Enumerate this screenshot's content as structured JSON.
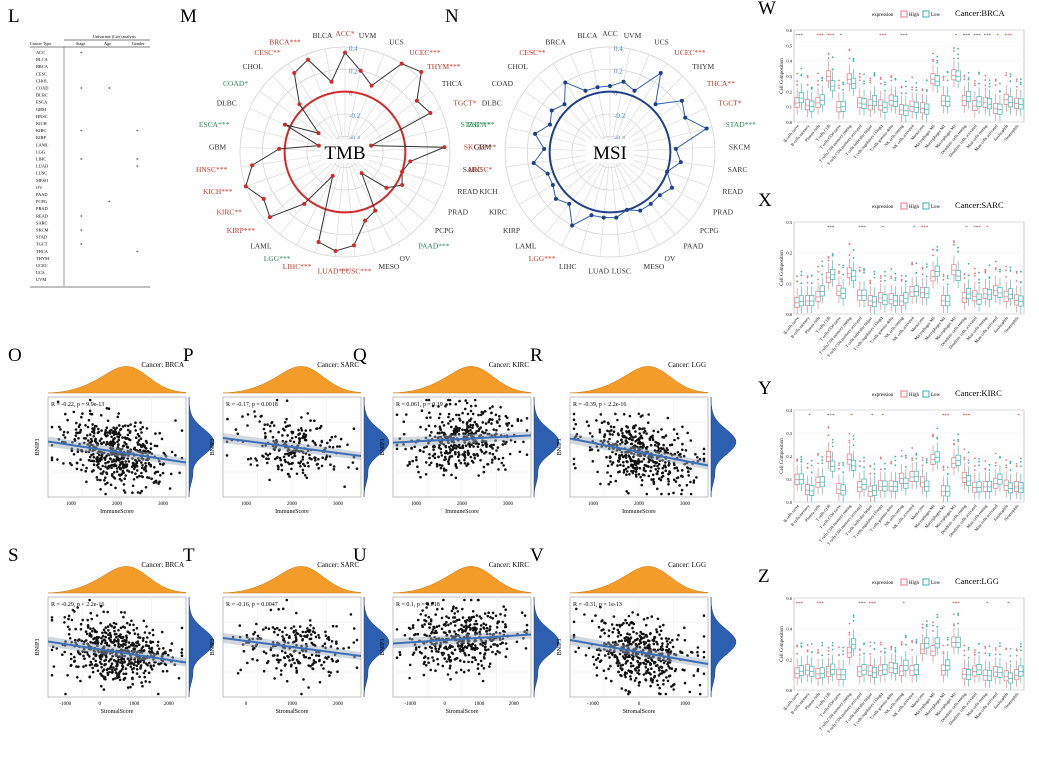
{
  "panel_letters": [
    "L",
    "M",
    "N",
    "O",
    "P",
    "Q",
    "R",
    "S",
    "T",
    "U",
    "V",
    "W",
    "X",
    "Y",
    "Z"
  ],
  "table_L": {
    "header_group": "Univariate (Cox) analysis",
    "col_headers": [
      "Cancer Type",
      "Stage",
      "Age",
      "Gender"
    ],
    "rows": [
      "ACC",
      "BLCA",
      "BRCA",
      "CESC",
      "CHOL",
      "COAD",
      "DLBC",
      "ESCA",
      "GBM",
      "HNSC",
      "KICH",
      "KIRC",
      "KIRP",
      "LAML",
      "LGG",
      "LIHC",
      "LUAD",
      "LUSC",
      "MESO",
      "OV",
      "PAAD",
      "PCPG",
      "PRAD",
      "READ",
      "SARC",
      "SKCM",
      "STAD",
      "TGCT",
      "THCA",
      "THYM",
      "UCEC",
      "UCS",
      "UVM"
    ],
    "marks": [
      [
        0,
        1
      ],
      [
        5,
        1
      ],
      [
        5,
        2
      ],
      [
        11,
        1
      ],
      [
        11,
        3
      ],
      [
        15,
        1
      ],
      [
        15,
        3
      ],
      [
        16,
        3
      ],
      [
        21,
        2
      ],
      [
        23,
        1
      ],
      [
        25,
        1
      ],
      [
        27,
        1
      ],
      [
        28,
        3
      ]
    ],
    "mark_symbol": "*"
  },
  "radar_M": {
    "center_label": "TMB",
    "ring_labels": [
      "0.4",
      "0.2",
      "0",
      "-0.2",
      "-0.4"
    ],
    "color_line": "#333333",
    "color_ring": "#d62728",
    "labels": [
      {
        "text": "ACC*",
        "color": "#c0392b"
      },
      {
        "text": "UVM",
        "color": "#333"
      },
      {
        "text": "UCS",
        "color": "#333"
      },
      {
        "text": "UCEC***",
        "color": "#c0392b"
      },
      {
        "text": "THYM***",
        "color": "#c0392b"
      },
      {
        "text": "THCA",
        "color": "#333"
      },
      {
        "text": "TGCT*",
        "color": "#c0392b"
      },
      {
        "text": "STAD***",
        "color": "#2e8b57"
      },
      {
        "text": "SKCM***",
        "color": "#c0392b"
      },
      {
        "text": "SARC",
        "color": "#333"
      },
      {
        "text": "READ",
        "color": "#333"
      },
      {
        "text": "PRAD",
        "color": "#333"
      },
      {
        "text": "PCPG",
        "color": "#333"
      },
      {
        "text": "PAAD***",
        "color": "#2e8b57"
      },
      {
        "text": "OV",
        "color": "#333"
      },
      {
        "text": "MESO",
        "color": "#333"
      },
      {
        "text": "LUSC***",
        "color": "#c0392b"
      },
      {
        "text": "LUAD***",
        "color": "#c0392b"
      },
      {
        "text": "LIHC***",
        "color": "#c0392b"
      },
      {
        "text": "LGG***",
        "color": "#2e8b57"
      },
      {
        "text": "LAML",
        "color": "#333"
      },
      {
        "text": "KIRP***",
        "color": "#c0392b"
      },
      {
        "text": "KIRC**",
        "color": "#c0392b"
      },
      {
        "text": "KICH***",
        "color": "#c0392b"
      },
      {
        "text": "HNSC***",
        "color": "#c0392b"
      },
      {
        "text": "GBM",
        "color": "#333"
      },
      {
        "text": "ESCA***",
        "color": "#2e8b57"
      },
      {
        "text": "DLBC",
        "color": "#333"
      },
      {
        "text": "COAD*",
        "color": "#2e8b57"
      },
      {
        "text": "CHOL",
        "color": "#333"
      },
      {
        "text": "CESC**",
        "color": "#c0392b"
      },
      {
        "text": "BRCA***",
        "color": "#c0392b"
      },
      {
        "text": "BLCA",
        "color": "#333"
      }
    ],
    "values": [
      0.35,
      0.2,
      0.1,
      0.4,
      0.45,
      0.25,
      0.3,
      -0.3,
      0.35,
      0.05,
      0.0,
      0.05,
      -0.05,
      -0.3,
      0.05,
      0.1,
      0.3,
      0.35,
      0.3,
      -0.3,
      0.05,
      0.35,
      0.3,
      0.4,
      0.3,
      0.05,
      -0.3,
      0.05,
      -0.25,
      0.05,
      0.3,
      0.35,
      0.1
    ]
  },
  "radar_N": {
    "center_label": "MSI",
    "ring_labels": [
      "0.4",
      "0.2",
      "0",
      "-0.2",
      "-0.4"
    ],
    "color_line": "#2c5fa8",
    "color_ring": "#1f3f8a",
    "labels": [
      {
        "text": "ACC",
        "color": "#333"
      },
      {
        "text": "UVM",
        "color": "#333"
      },
      {
        "text": "UCS",
        "color": "#333"
      },
      {
        "text": "UCEC***",
        "color": "#c0392b"
      },
      {
        "text": "THYM",
        "color": "#333"
      },
      {
        "text": "THCA**",
        "color": "#c0392b"
      },
      {
        "text": "TGCT*",
        "color": "#c0392b"
      },
      {
        "text": "STAD***",
        "color": "#2e8b57"
      },
      {
        "text": "SKCM",
        "color": "#333"
      },
      {
        "text": "SARC",
        "color": "#333"
      },
      {
        "text": "READ",
        "color": "#333"
      },
      {
        "text": "PRAD",
        "color": "#333"
      },
      {
        "text": "PCPG",
        "color": "#333"
      },
      {
        "text": "PAAD",
        "color": "#333"
      },
      {
        "text": "OV",
        "color": "#333"
      },
      {
        "text": "MESO",
        "color": "#333"
      },
      {
        "text": "LUSC",
        "color": "#333"
      },
      {
        "text": "LUAD",
        "color": "#333"
      },
      {
        "text": "LIHC",
        "color": "#333"
      },
      {
        "text": "LGG***",
        "color": "#c0392b"
      },
      {
        "text": "LAML",
        "color": "#333"
      },
      {
        "text": "KIRP",
        "color": "#333"
      },
      {
        "text": "KIRC",
        "color": "#333"
      },
      {
        "text": "KICH",
        "color": "#333"
      },
      {
        "text": "HNSC*",
        "color": "#c0392b"
      },
      {
        "text": "GBM",
        "color": "#333"
      },
      {
        "text": "ESCA**",
        "color": "#2e8b57"
      },
      {
        "text": "DLBC",
        "color": "#333"
      },
      {
        "text": "COAD",
        "color": "#333"
      },
      {
        "text": "CHOL",
        "color": "#333"
      },
      {
        "text": "CESC**",
        "color": "#c0392b"
      },
      {
        "text": "BRCA",
        "color": "#333"
      },
      {
        "text": "BLCA",
        "color": "#333"
      }
    ],
    "values": [
      0.05,
      0.1,
      0.05,
      0.3,
      0.05,
      0.25,
      0.2,
      0.35,
      0.05,
      0.1,
      0.0,
      0.1,
      0.05,
      0.05,
      0.05,
      0.0,
      0.05,
      0.05,
      0.05,
      0.2,
      0.05,
      0.1,
      0.05,
      0.05,
      0.15,
      0.05,
      0.15,
      0.05,
      0.1,
      0.05,
      0.2,
      0.05,
      0.05
    ]
  },
  "scatter_panels": [
    {
      "letter": "O",
      "title": "Cancer: BRCA",
      "stat": "R = -0.22, p = 9.9e-13",
      "xlabel": "ImmuneScore",
      "ylabel": "BNIP3",
      "xticks": [
        "1000",
        "2000",
        "3000"
      ],
      "n": 520,
      "slope": -0.35,
      "density": "mid"
    },
    {
      "letter": "P",
      "title": "Cancer: SARC",
      "stat": "R = -0.17, p = 0.0018",
      "xlabel": "ImmuneScore",
      "ylabel": "BNIP3",
      "xticks": [
        "1000",
        "2000",
        "3000"
      ],
      "n": 230,
      "slope": -0.3,
      "density": "low"
    },
    {
      "letter": "Q",
      "title": "Cancer: KIRC",
      "stat": "R = 0.061, p = 0.19",
      "xlabel": "ImmuneScore",
      "ylabel": "BNIP3",
      "xticks": [
        "1000",
        "2000",
        "3000"
      ],
      "n": 420,
      "slope": 0.12,
      "density": "hi"
    },
    {
      "letter": "R",
      "title": "Cancer: LGG",
      "stat": "R = -0.39, p < 2.2e-16",
      "xlabel": "ImmuneScore",
      "ylabel": "BNIP3",
      "xticks": [
        "1000",
        "2000",
        "3000"
      ],
      "n": 460,
      "slope": -0.45,
      "density": "mid"
    },
    {
      "letter": "S",
      "title": "Cancer: BRCA",
      "stat": "R = -0.29, p < 2.2e-16",
      "xlabel": "StromalScore",
      "ylabel": "BNIP3",
      "xticks": [
        "-1000",
        "0",
        "1000",
        "2000"
      ],
      "n": 540,
      "slope": -0.35,
      "density": "mid"
    },
    {
      "letter": "T",
      "title": "Cancer: SARC",
      "stat": "R = -0.16, p = 0.0047",
      "xlabel": "StromalScore",
      "ylabel": "BNIP3",
      "xticks": [
        "0",
        "1000",
        "2000"
      ],
      "n": 230,
      "slope": -0.3,
      "density": "low"
    },
    {
      "letter": "U",
      "title": "Cancer: KIRC",
      "stat": "R = 0.1, p = 0.018",
      "xlabel": "StromalScore",
      "ylabel": "BNIP3",
      "xticks": [
        "-1000",
        "0",
        "1000",
        "2000"
      ],
      "n": 420,
      "slope": 0.15,
      "density": "hi"
    },
    {
      "letter": "V",
      "title": "Cancer: LGG",
      "stat": "R = -0.31, p = 1e-13",
      "xlabel": "StromalScore",
      "ylabel": "BNIP3",
      "xticks": [
        "-1000",
        "0",
        "1000"
      ],
      "n": 460,
      "slope": -0.4,
      "density": "mid"
    }
  ],
  "box_panels": [
    {
      "letter": "W",
      "title": "Cancer:BRCA",
      "legend_title": "expression",
      "legend_items": [
        "High",
        "Low"
      ],
      "ylabel": "Cell Composition",
      "yticks": [
        "0.0",
        "0.1",
        "0.2",
        "0.3",
        "0.4",
        "0.5",
        "0.6"
      ],
      "ymax": 0.6
    },
    {
      "letter": "X",
      "title": "Cancer:SARC",
      "legend_title": "expression",
      "legend_items": [
        "High",
        "Low"
      ],
      "ylabel": "Cell Composition",
      "yticks": [
        "0.0",
        "0.1",
        "0.2",
        "0.3"
      ],
      "ymax": 0.35
    },
    {
      "letter": "Y",
      "title": "Cancer:KIRC",
      "legend_title": "expression",
      "legend_items": [
        "High",
        "Low"
      ],
      "ylabel": "Cell Composition",
      "yticks": [
        "0.0",
        "0.1",
        "0.2",
        "0.3",
        "0.4"
      ],
      "ymax": 0.45
    },
    {
      "letter": "Z",
      "title": "Cancer:LGG",
      "legend_title": "expression",
      "legend_items": [
        "High",
        "Low"
      ],
      "ylabel": "Cell Composition",
      "yticks": [
        "0.0",
        "0.2",
        "0.4",
        "0.6"
      ],
      "ymax": 0.6
    }
  ],
  "box_cells": [
    "B cells naive",
    "B cells memory",
    "Plasma cells",
    "T cells CD8",
    "T cells CD4 naive",
    "T cells CD4 memory resting",
    "T cells CD4 memory activated",
    "T cells follicular helper",
    "T cells regulatory (Tregs)",
    "T cells gamma delta",
    "NK cells resting",
    "NK cells activated",
    "Monocytes",
    "Macrophages M0",
    "Macrophages M1",
    "Macrophages M2",
    "Dendritic cells resting",
    "Dendritic cells activated",
    "Mast cells resting",
    "Mast cells activated",
    "Eosinophils",
    "Neutrophils"
  ],
  "box_colors": {
    "high": "#e8787a",
    "low": "#35b5b5"
  },
  "chart_data": [
    {
      "type": "table",
      "title": "Univariate (Cox) analysis",
      "columns": [
        "Cancer Type",
        "Stage",
        "Age",
        "Gender"
      ]
    },
    {
      "type": "radar",
      "title": "TMB",
      "categories_ref": "radar_M.labels",
      "values_ref": "radar_M.values",
      "range": [
        -0.4,
        0.4
      ]
    },
    {
      "type": "radar",
      "title": "MSI",
      "categories_ref": "radar_N.labels",
      "values_ref": "radar_N.values",
      "range": [
        -0.4,
        0.4
      ]
    },
    {
      "type": "scatter",
      "title": "Cancer: BRCA",
      "xlabel": "ImmuneScore",
      "ylabel": "BNIP3",
      "R": -0.22,
      "p": "9.9e-13"
    },
    {
      "type": "scatter",
      "title": "Cancer: SARC",
      "xlabel": "ImmuneScore",
      "ylabel": "BNIP3",
      "R": -0.17,
      "p": "0.0018"
    },
    {
      "type": "scatter",
      "title": "Cancer: KIRC",
      "xlabel": "ImmuneScore",
      "ylabel": "BNIP3",
      "R": 0.061,
      "p": "0.19"
    },
    {
      "type": "scatter",
      "title": "Cancer: LGG",
      "xlabel": "ImmuneScore",
      "ylabel": "BNIP3",
      "R": -0.39,
      "p": "< 2.2e-16"
    },
    {
      "type": "scatter",
      "title": "Cancer: BRCA",
      "xlabel": "StromalScore",
      "ylabel": "BNIP3",
      "R": -0.29,
      "p": "< 2.2e-16"
    },
    {
      "type": "scatter",
      "title": "Cancer: SARC",
      "xlabel": "StromalScore",
      "ylabel": "BNIP3",
      "R": -0.16,
      "p": "0.0047"
    },
    {
      "type": "scatter",
      "title": "Cancer: KIRC",
      "xlabel": "StromalScore",
      "ylabel": "BNIP3",
      "R": 0.1,
      "p": "0.018"
    },
    {
      "type": "scatter",
      "title": "Cancer: LGG",
      "xlabel": "StromalScore",
      "ylabel": "BNIP3",
      "R": -0.31,
      "p": "1e-13"
    },
    {
      "type": "bar",
      "subtype": "box",
      "title": "Cancer:BRCA",
      "ylabel": "Cell Composition",
      "ylim": [
        0,
        0.6
      ]
    },
    {
      "type": "bar",
      "subtype": "box",
      "title": "Cancer:SARC",
      "ylabel": "Cell Composition",
      "ylim": [
        0,
        0.35
      ]
    },
    {
      "type": "bar",
      "subtype": "box",
      "title": "Cancer:KIRC",
      "ylabel": "Cell Composition",
      "ylim": [
        0,
        0.45
      ]
    },
    {
      "type": "bar",
      "subtype": "box",
      "title": "Cancer:LGG",
      "ylabel": "Cell Composition",
      "ylim": [
        0,
        0.6
      ]
    }
  ]
}
